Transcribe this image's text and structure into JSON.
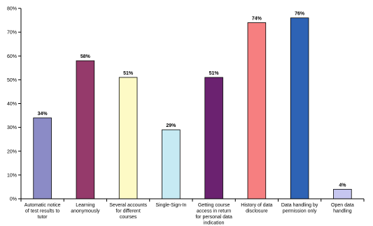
{
  "chart_data": {
    "type": "bar",
    "categories": [
      [
        "Automatic notice",
        "of test results to",
        "tutor"
      ],
      [
        "Learning",
        "anonymously"
      ],
      [
        "Several accounts",
        "for different",
        "courses"
      ],
      [
        "Single-Sign-In"
      ],
      [
        "Getting course",
        "access in return",
        "for personal data",
        "indication"
      ],
      [
        "History of data",
        "disclosure"
      ],
      [
        "Data handling by",
        "permission only"
      ],
      [
        "Open data",
        "handling"
      ]
    ],
    "values": [
      34,
      58,
      51,
      29,
      51,
      74,
      76,
      4
    ],
    "data_labels": [
      "34%",
      "58%",
      "51%",
      "29%",
      "51%",
      "74%",
      "76%",
      "4%"
    ],
    "colors": [
      "#8B8BC6",
      "#953A6B",
      "#FDFAC5",
      "#C6EAF3",
      "#6B2270",
      "#F67F80",
      "#2E63B5",
      "#C6C6F0"
    ],
    "yticks": [
      "0%",
      "10%",
      "20%",
      "30%",
      "40%",
      "50%",
      "60%",
      "70%",
      "80%"
    ],
    "ylim": [
      0,
      80
    ],
    "grid": false,
    "legend": "none"
  }
}
